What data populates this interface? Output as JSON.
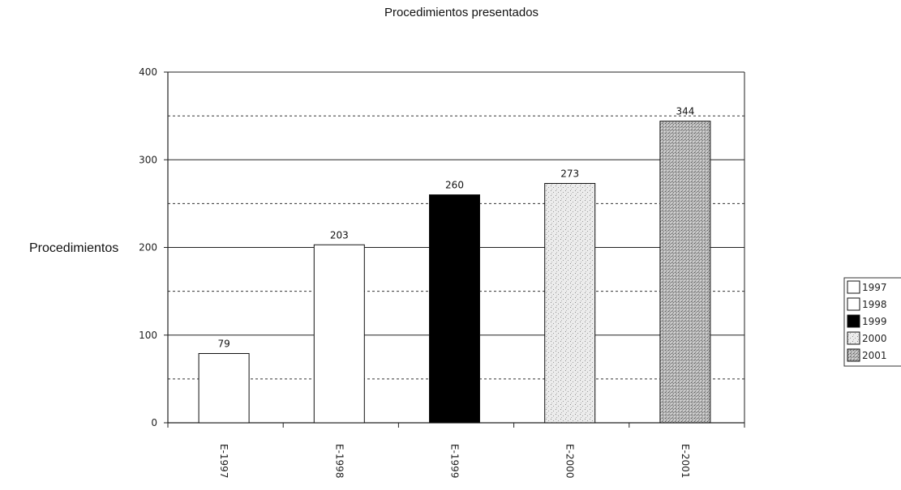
{
  "chart_data": {
    "type": "bar",
    "title": "Procedimientos presentados",
    "xlabel": "",
    "ylabel": "Procedimientos",
    "ylim": [
      0,
      400
    ],
    "yticks": [
      0,
      100,
      200,
      300,
      400
    ],
    "grid": {
      "major": true,
      "minor_dashed": true
    },
    "categories": [
      "E-1997",
      "E-1998",
      "E-1999",
      "E-2000",
      "E-2001"
    ],
    "values": [
      79,
      203,
      260,
      273,
      344
    ],
    "data_labels": [
      "79",
      "203",
      "260",
      "273",
      "344"
    ],
    "legend": {
      "placement": "right",
      "entries": [
        "1997",
        "1998",
        "1999",
        "2000",
        "2001"
      ]
    },
    "bar_styles": [
      {
        "fill": "#ffffff",
        "pattern": "none"
      },
      {
        "fill": "#ffffff",
        "pattern": "none"
      },
      {
        "fill": "#000000",
        "pattern": "none"
      },
      {
        "fill": "#e4e4e4",
        "pattern": "light-speckle"
      },
      {
        "fill": "#bcbcbc",
        "pattern": "dense-speckle"
      }
    ]
  }
}
